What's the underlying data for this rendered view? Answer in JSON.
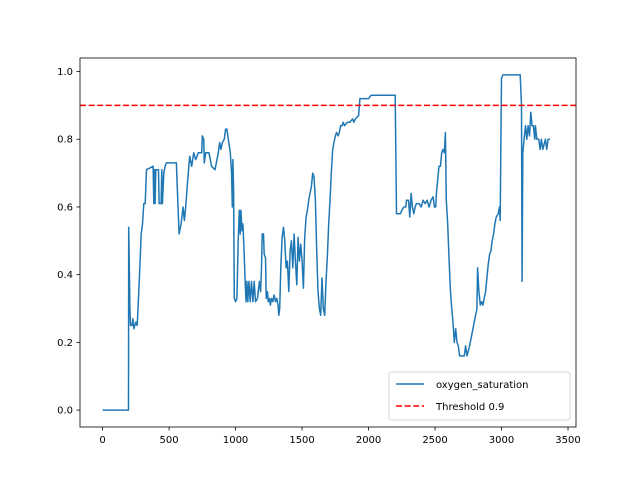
{
  "chart_data": {
    "type": "line",
    "title": "",
    "xlabel": "",
    "ylabel": "",
    "xlim": [
      -170,
      3560
    ],
    "ylim": [
      -0.05,
      1.04
    ],
    "xticks": [
      0,
      500,
      1000,
      1500,
      2000,
      2500,
      3000,
      3500
    ],
    "yticks": [
      0.0,
      0.2,
      0.4,
      0.6,
      0.8,
      1.0
    ],
    "xtick_labels": [
      "0",
      "500",
      "1000",
      "1500",
      "2000",
      "2500",
      "3000",
      "3500"
    ],
    "ytick_labels": [
      "0.0",
      "0.2",
      "0.4",
      "0.6",
      "0.8",
      "1.0"
    ],
    "grid": false,
    "legend_position": "lower-right",
    "series": [
      {
        "name": "oxygen_saturation",
        "color": "#1f77b4",
        "style": "solid",
        "points": [
          [
            0,
            0.0
          ],
          [
            195,
            0.0
          ],
          [
            196,
            0.54
          ],
          [
            205,
            0.3
          ],
          [
            210,
            0.25
          ],
          [
            222,
            0.25
          ],
          [
            228,
            0.27
          ],
          [
            235,
            0.24
          ],
          [
            250,
            0.26
          ],
          [
            260,
            0.25
          ],
          [
            270,
            0.33
          ],
          [
            280,
            0.42
          ],
          [
            290,
            0.52
          ],
          [
            300,
            0.55
          ],
          [
            310,
            0.61
          ],
          [
            320,
            0.61
          ],
          [
            330,
            0.71
          ],
          [
            380,
            0.72
          ],
          [
            385,
            0.61
          ],
          [
            390,
            0.71
          ],
          [
            395,
            0.61
          ],
          [
            400,
            0.71
          ],
          [
            420,
            0.71
          ],
          [
            425,
            0.61
          ],
          [
            440,
            0.61
          ],
          [
            445,
            0.71
          ],
          [
            450,
            0.61
          ],
          [
            460,
            0.7
          ],
          [
            470,
            0.72
          ],
          [
            480,
            0.73
          ],
          [
            555,
            0.73
          ],
          [
            560,
            0.67
          ],
          [
            575,
            0.52
          ],
          [
            590,
            0.55
          ],
          [
            605,
            0.6
          ],
          [
            615,
            0.56
          ],
          [
            625,
            0.6
          ],
          [
            640,
            0.68
          ],
          [
            655,
            0.75
          ],
          [
            670,
            0.72
          ],
          [
            685,
            0.76
          ],
          [
            700,
            0.74
          ],
          [
            720,
            0.76
          ],
          [
            745,
            0.76
          ],
          [
            750,
            0.81
          ],
          [
            760,
            0.8
          ],
          [
            765,
            0.73
          ],
          [
            775,
            0.76
          ],
          [
            800,
            0.76
          ],
          [
            820,
            0.72
          ],
          [
            845,
            0.71
          ],
          [
            870,
            0.76
          ],
          [
            880,
            0.79
          ],
          [
            890,
            0.77
          ],
          [
            900,
            0.79
          ],
          [
            915,
            0.8
          ],
          [
            925,
            0.83
          ],
          [
            935,
            0.83
          ],
          [
            945,
            0.8
          ],
          [
            960,
            0.76
          ],
          [
            970,
            0.7
          ],
          [
            975,
            0.6
          ],
          [
            980,
            0.74
          ],
          [
            985,
            0.65
          ],
          [
            990,
            0.33
          ],
          [
            1000,
            0.32
          ],
          [
            1010,
            0.33
          ],
          [
            1015,
            0.42
          ],
          [
            1020,
            0.5
          ],
          [
            1028,
            0.59
          ],
          [
            1035,
            0.52
          ],
          [
            1040,
            0.59
          ],
          [
            1048,
            0.53
          ],
          [
            1055,
            0.55
          ],
          [
            1062,
            0.49
          ],
          [
            1070,
            0.4
          ],
          [
            1078,
            0.32
          ],
          [
            1085,
            0.38
          ],
          [
            1092,
            0.32
          ],
          [
            1100,
            0.38
          ],
          [
            1110,
            0.32
          ],
          [
            1120,
            0.38
          ],
          [
            1130,
            0.32
          ],
          [
            1140,
            0.38
          ],
          [
            1150,
            0.32
          ],
          [
            1165,
            0.33
          ],
          [
            1170,
            0.35
          ],
          [
            1180,
            0.38
          ],
          [
            1188,
            0.35
          ],
          [
            1195,
            0.42
          ],
          [
            1200,
            0.52
          ],
          [
            1210,
            0.52
          ],
          [
            1215,
            0.46
          ],
          [
            1225,
            0.45
          ],
          [
            1230,
            0.33
          ],
          [
            1240,
            0.35
          ],
          [
            1245,
            0.32
          ],
          [
            1255,
            0.33
          ],
          [
            1262,
            0.31
          ],
          [
            1270,
            0.33
          ],
          [
            1280,
            0.32
          ],
          [
            1290,
            0.34
          ],
          [
            1300,
            0.32
          ],
          [
            1310,
            0.33
          ],
          [
            1320,
            0.31
          ],
          [
            1325,
            0.28
          ],
          [
            1332,
            0.3
          ],
          [
            1340,
            0.42
          ],
          [
            1350,
            0.51
          ],
          [
            1360,
            0.54
          ],
          [
            1370,
            0.5
          ],
          [
            1380,
            0.42
          ],
          [
            1390,
            0.44
          ],
          [
            1400,
            0.35
          ],
          [
            1410,
            0.47
          ],
          [
            1420,
            0.5
          ],
          [
            1430,
            0.42
          ],
          [
            1440,
            0.52
          ],
          [
            1450,
            0.44
          ],
          [
            1460,
            0.37
          ],
          [
            1470,
            0.51
          ],
          [
            1480,
            0.44
          ],
          [
            1490,
            0.49
          ],
          [
            1500,
            0.44
          ],
          [
            1510,
            0.36
          ],
          [
            1520,
            0.51
          ],
          [
            1530,
            0.57
          ],
          [
            1540,
            0.59
          ],
          [
            1550,
            0.62
          ],
          [
            1560,
            0.64
          ],
          [
            1570,
            0.66
          ],
          [
            1580,
            0.7
          ],
          [
            1590,
            0.69
          ],
          [
            1600,
            0.62
          ],
          [
            1610,
            0.47
          ],
          [
            1620,
            0.35
          ],
          [
            1630,
            0.3
          ],
          [
            1640,
            0.28
          ],
          [
            1650,
            0.39
          ],
          [
            1660,
            0.3
          ],
          [
            1670,
            0.28
          ],
          [
            1680,
            0.38
          ],
          [
            1690,
            0.45
          ],
          [
            1700,
            0.55
          ],
          [
            1710,
            0.62
          ],
          [
            1720,
            0.7
          ],
          [
            1730,
            0.77
          ],
          [
            1740,
            0.79
          ],
          [
            1750,
            0.81
          ],
          [
            1760,
            0.82
          ],
          [
            1770,
            0.81
          ],
          [
            1780,
            0.82
          ],
          [
            1790,
            0.84
          ],
          [
            1800,
            0.84
          ],
          [
            1810,
            0.85
          ],
          [
            1820,
            0.84
          ],
          [
            1840,
            0.85
          ],
          [
            1860,
            0.85
          ],
          [
            1880,
            0.86
          ],
          [
            1890,
            0.85
          ],
          [
            1900,
            0.86
          ],
          [
            1925,
            0.87
          ],
          [
            1935,
            0.92
          ],
          [
            2000,
            0.92
          ],
          [
            2020,
            0.93
          ],
          [
            2200,
            0.93
          ],
          [
            2210,
            0.58
          ],
          [
            2240,
            0.58
          ],
          [
            2250,
            0.59
          ],
          [
            2265,
            0.6
          ],
          [
            2280,
            0.6
          ],
          [
            2285,
            0.62
          ],
          [
            2300,
            0.62
          ],
          [
            2310,
            0.57
          ],
          [
            2320,
            0.64
          ],
          [
            2330,
            0.6
          ],
          [
            2340,
            0.58
          ],
          [
            2350,
            0.6
          ],
          [
            2360,
            0.61
          ],
          [
            2380,
            0.61
          ],
          [
            2395,
            0.6
          ],
          [
            2410,
            0.62
          ],
          [
            2425,
            0.61
          ],
          [
            2440,
            0.62
          ],
          [
            2455,
            0.6
          ],
          [
            2470,
            0.62
          ],
          [
            2485,
            0.63
          ],
          [
            2495,
            0.6
          ],
          [
            2505,
            0.6
          ],
          [
            2510,
            0.64
          ],
          [
            2520,
            0.68
          ],
          [
            2530,
            0.72
          ],
          [
            2540,
            0.72
          ],
          [
            2550,
            0.76
          ],
          [
            2560,
            0.77
          ],
          [
            2570,
            0.76
          ],
          [
            2578,
            0.82
          ],
          [
            2585,
            0.62
          ],
          [
            2595,
            0.55
          ],
          [
            2605,
            0.45
          ],
          [
            2615,
            0.36
          ],
          [
            2625,
            0.3
          ],
          [
            2635,
            0.26
          ],
          [
            2645,
            0.2
          ],
          [
            2655,
            0.24
          ],
          [
            2665,
            0.2
          ],
          [
            2675,
            0.19
          ],
          [
            2685,
            0.16
          ],
          [
            2700,
            0.16
          ],
          [
            2720,
            0.16
          ],
          [
            2730,
            0.19
          ],
          [
            2740,
            0.16
          ],
          [
            2760,
            0.19
          ],
          [
            2775,
            0.22
          ],
          [
            2790,
            0.25
          ],
          [
            2800,
            0.27
          ],
          [
            2810,
            0.29
          ],
          [
            2815,
            0.3
          ],
          [
            2820,
            0.42
          ],
          [
            2830,
            0.35
          ],
          [
            2840,
            0.31
          ],
          [
            2850,
            0.32
          ],
          [
            2860,
            0.31
          ],
          [
            2870,
            0.33
          ],
          [
            2880,
            0.35
          ],
          [
            2890,
            0.39
          ],
          [
            2900,
            0.43
          ],
          [
            2910,
            0.46
          ],
          [
            2920,
            0.47
          ],
          [
            2930,
            0.5
          ],
          [
            2940,
            0.52
          ],
          [
            2950,
            0.55
          ],
          [
            2960,
            0.57
          ],
          [
            2975,
            0.58
          ],
          [
            2985,
            0.6
          ],
          [
            2990,
            0.56
          ],
          [
            2995,
            0.8
          ],
          [
            3000,
            0.98
          ],
          [
            3010,
            0.99
          ],
          [
            3140,
            0.99
          ],
          [
            3150,
            0.9
          ],
          [
            3155,
            0.38
          ],
          [
            3160,
            0.76
          ],
          [
            3170,
            0.8
          ],
          [
            3180,
            0.84
          ],
          [
            3190,
            0.8
          ],
          [
            3200,
            0.84
          ],
          [
            3210,
            0.81
          ],
          [
            3220,
            0.88
          ],
          [
            3230,
            0.84
          ],
          [
            3240,
            0.84
          ],
          [
            3250,
            0.8
          ],
          [
            3255,
            0.84
          ],
          [
            3265,
            0.8
          ],
          [
            3280,
            0.8
          ],
          [
            3290,
            0.77
          ],
          [
            3300,
            0.8
          ],
          [
            3310,
            0.77
          ],
          [
            3330,
            0.8
          ],
          [
            3340,
            0.77
          ],
          [
            3350,
            0.8
          ],
          [
            3365,
            0.8
          ]
        ]
      },
      {
        "name": "Threshold 0.9",
        "color": "#ff0000",
        "style": "dashed",
        "value": 0.9
      }
    ]
  }
}
